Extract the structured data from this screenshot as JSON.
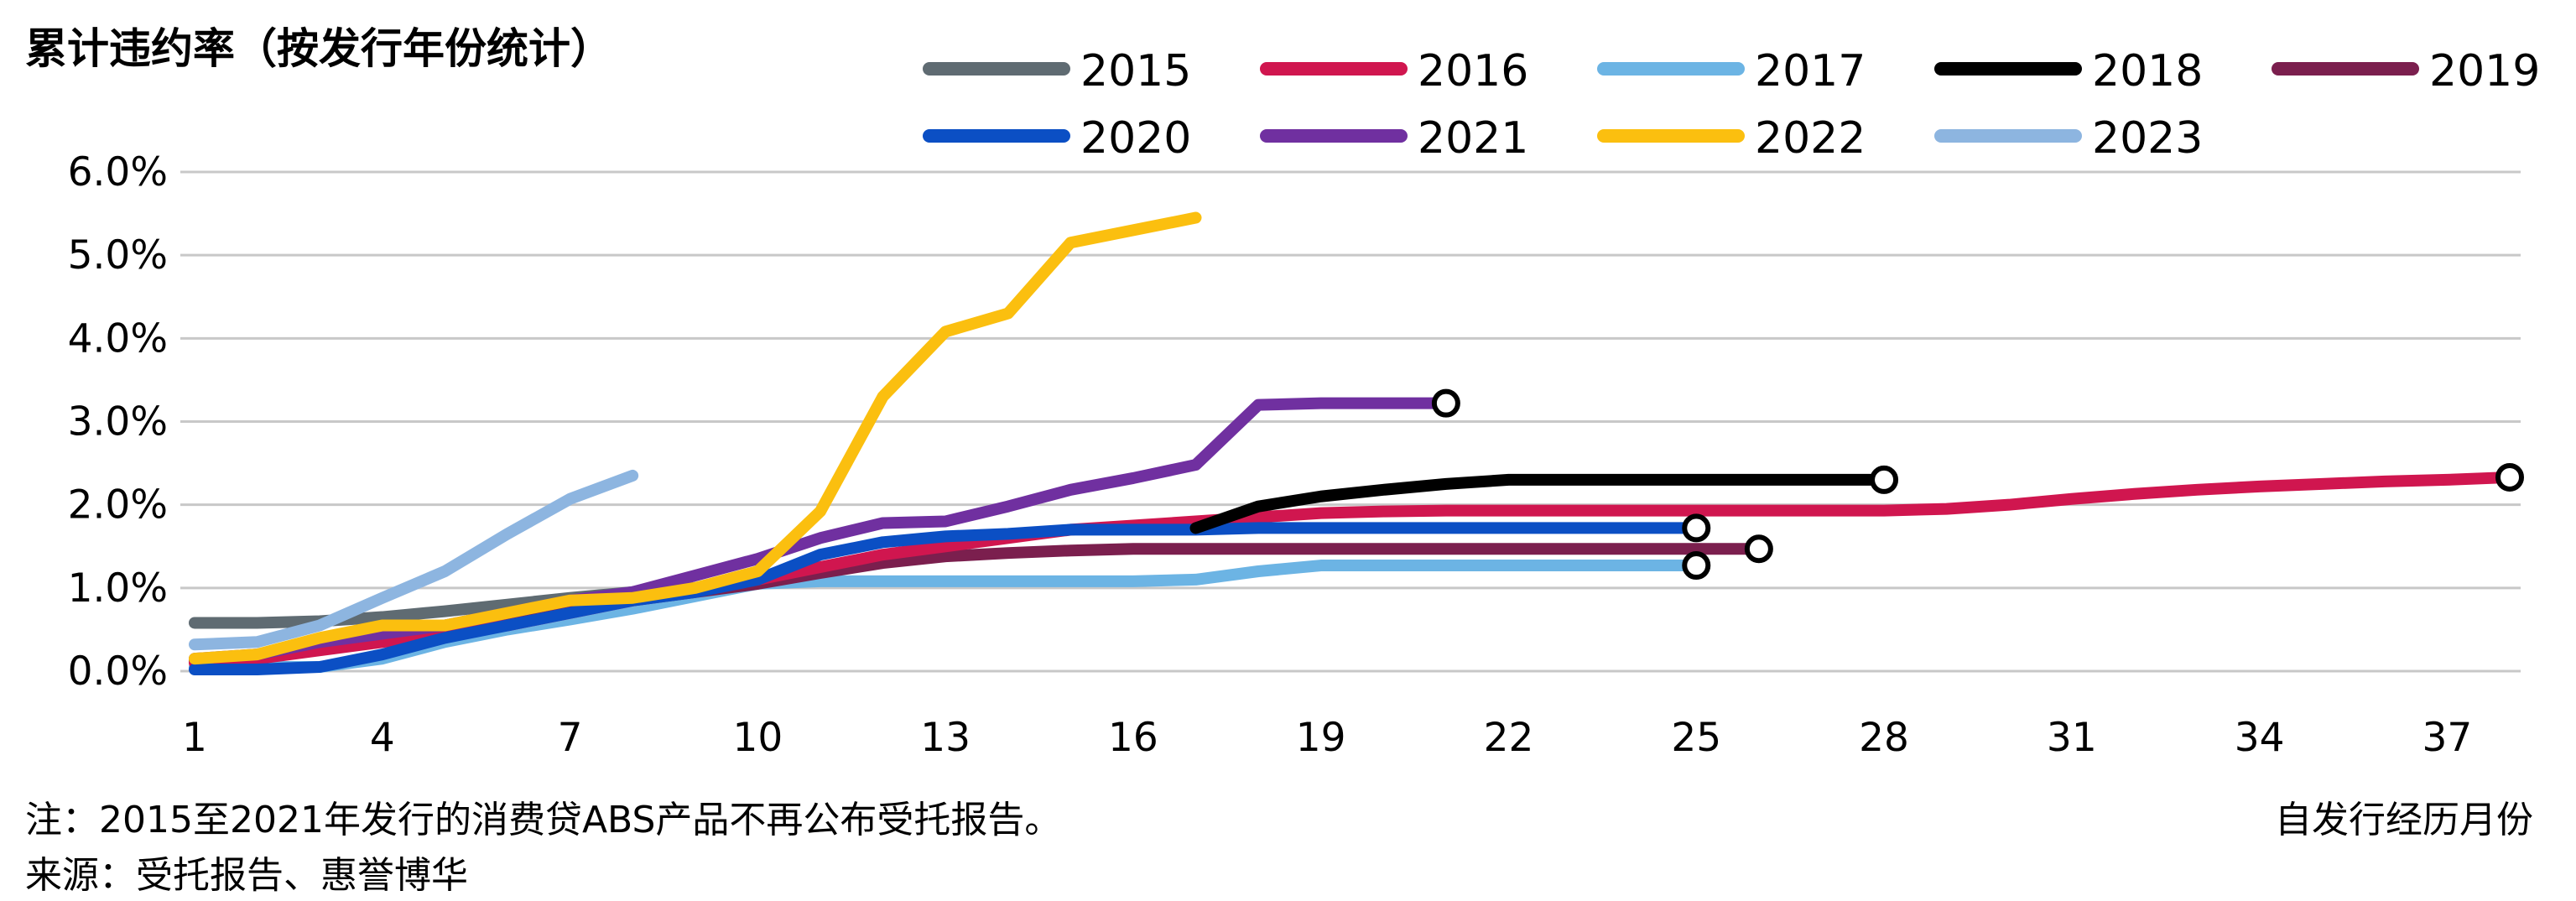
{
  "chart_data": {
    "type": "line",
    "title": "累计违约率（按发行年份统计）",
    "xlabel": "自发行经历月份",
    "ylabel": "",
    "xlim": [
      1,
      38
    ],
    "ylim": [
      0,
      6
    ],
    "xticks": [
      1,
      4,
      7,
      10,
      13,
      16,
      19,
      22,
      25,
      28,
      31,
      34,
      37
    ],
    "yticks": [
      0,
      1,
      2,
      3,
      4,
      5,
      6
    ],
    "ytick_labels": [
      "0.0%",
      "1.0%",
      "2.0%",
      "3.0%",
      "4.0%",
      "5.0%",
      "6.0%"
    ],
    "grid": "horizontal",
    "legend_placement": "top",
    "series": [
      {
        "name": "2015",
        "color": "#5f6b72",
        "end_marker": false,
        "x": [
          1,
          2,
          3,
          4,
          5,
          6,
          7,
          8,
          9,
          10
        ],
        "y": [
          0.58,
          0.58,
          0.6,
          0.65,
          0.72,
          0.8,
          0.88,
          0.95,
          1.0,
          1.05
        ]
      },
      {
        "name": "2016",
        "color": "#d0164f",
        "end_marker": true,
        "x": [
          1,
          2,
          3,
          4,
          5,
          6,
          7,
          8,
          9,
          10,
          11,
          12,
          13,
          14,
          15,
          16,
          17,
          18,
          19,
          20,
          21,
          22,
          23,
          24,
          25,
          26,
          27,
          28,
          29,
          30,
          31,
          32,
          33,
          34,
          35,
          36,
          37,
          38
        ],
        "y": [
          0.1,
          0.15,
          0.25,
          0.35,
          0.45,
          0.55,
          0.7,
          0.85,
          1.0,
          1.1,
          1.25,
          1.4,
          1.5,
          1.6,
          1.7,
          1.75,
          1.8,
          1.85,
          1.9,
          1.92,
          1.93,
          1.93,
          1.93,
          1.93,
          1.93,
          1.93,
          1.93,
          1.93,
          1.95,
          2.0,
          2.07,
          2.13,
          2.18,
          2.22,
          2.25,
          2.28,
          2.3,
          2.33
        ]
      },
      {
        "name": "2017",
        "color": "#6cb4e4",
        "end_marker": true,
        "x": [
          1,
          2,
          3,
          4,
          5,
          6,
          7,
          8,
          9,
          10,
          11,
          12,
          13,
          14,
          15,
          16,
          17,
          18,
          19,
          20,
          21,
          22,
          23,
          24,
          25
        ],
        "y": [
          0.05,
          0.05,
          0.05,
          0.15,
          0.35,
          0.5,
          0.62,
          0.75,
          0.9,
          1.05,
          1.08,
          1.08,
          1.08,
          1.08,
          1.08,
          1.08,
          1.1,
          1.2,
          1.27,
          1.27,
          1.27,
          1.27,
          1.27,
          1.27,
          1.27
        ]
      },
      {
        "name": "2018",
        "color": "#000000",
        "end_marker": true,
        "x": [
          17,
          18,
          19,
          20,
          21,
          22,
          23,
          24,
          25,
          26,
          27,
          28
        ],
        "y": [
          1.72,
          1.98,
          2.1,
          2.18,
          2.25,
          2.3,
          2.3,
          2.3,
          2.3,
          2.3,
          2.3,
          2.3
        ]
      },
      {
        "name": "2019",
        "color": "#7b1f4e",
        "end_marker": true,
        "x": [
          1,
          2,
          3,
          4,
          5,
          6,
          7,
          8,
          9,
          10,
          11,
          12,
          13,
          14,
          15,
          16,
          17,
          18,
          19,
          20,
          21,
          22,
          23,
          24,
          25,
          26
        ],
        "y": [
          0.12,
          0.18,
          0.3,
          0.4,
          0.5,
          0.6,
          0.75,
          0.85,
          0.95,
          1.05,
          1.18,
          1.3,
          1.38,
          1.42,
          1.45,
          1.47,
          1.47,
          1.47,
          1.47,
          1.47,
          1.47,
          1.47,
          1.47,
          1.47,
          1.47,
          1.47
        ]
      },
      {
        "name": "2020",
        "color": "#0b4fc4",
        "end_marker": true,
        "x": [
          1,
          2,
          3,
          4,
          5,
          6,
          7,
          8,
          9,
          10,
          11,
          12,
          13,
          14,
          15,
          16,
          17,
          18,
          19,
          20,
          21,
          22,
          23,
          24,
          25
        ],
        "y": [
          0.02,
          0.02,
          0.05,
          0.2,
          0.4,
          0.55,
          0.7,
          0.85,
          0.95,
          1.1,
          1.4,
          1.55,
          1.62,
          1.65,
          1.7,
          1.7,
          1.7,
          1.72,
          1.72,
          1.72,
          1.72,
          1.72,
          1.72,
          1.72,
          1.72
        ]
      },
      {
        "name": "2021",
        "color": "#7030a0",
        "end_marker": true,
        "x": [
          1,
          2,
          3,
          4,
          5,
          6,
          7,
          8,
          9,
          10,
          11,
          12,
          13,
          14,
          15,
          16,
          17,
          18,
          19,
          20,
          21
        ],
        "y": [
          0.15,
          0.2,
          0.35,
          0.45,
          0.55,
          0.7,
          0.85,
          0.95,
          1.15,
          1.35,
          1.6,
          1.78,
          1.8,
          1.98,
          2.18,
          2.32,
          2.48,
          3.2,
          3.22,
          3.22,
          3.22
        ]
      },
      {
        "name": "2022",
        "color": "#fbbf0f",
        "end_marker": false,
        "x": [
          1,
          2,
          3,
          4,
          5,
          6,
          7,
          8,
          9,
          10,
          11,
          12,
          13,
          14,
          15,
          16,
          17
        ],
        "y": [
          0.15,
          0.2,
          0.4,
          0.55,
          0.55,
          0.7,
          0.85,
          0.88,
          1.0,
          1.2,
          1.92,
          3.3,
          4.08,
          4.3,
          5.15,
          5.3,
          5.45
        ]
      },
      {
        "name": "2023",
        "color": "#8db5e0",
        "end_marker": false,
        "x": [
          1,
          2,
          3,
          4,
          5,
          6,
          7,
          8
        ],
        "y": [
          0.32,
          0.35,
          0.55,
          0.88,
          1.2,
          1.65,
          2.07,
          2.35
        ]
      }
    ],
    "notes": [
      "注：2015至2021年发行的消费贷ABS产品不再公布受托报告。",
      "来源：受托报告、惠誉博华"
    ]
  }
}
